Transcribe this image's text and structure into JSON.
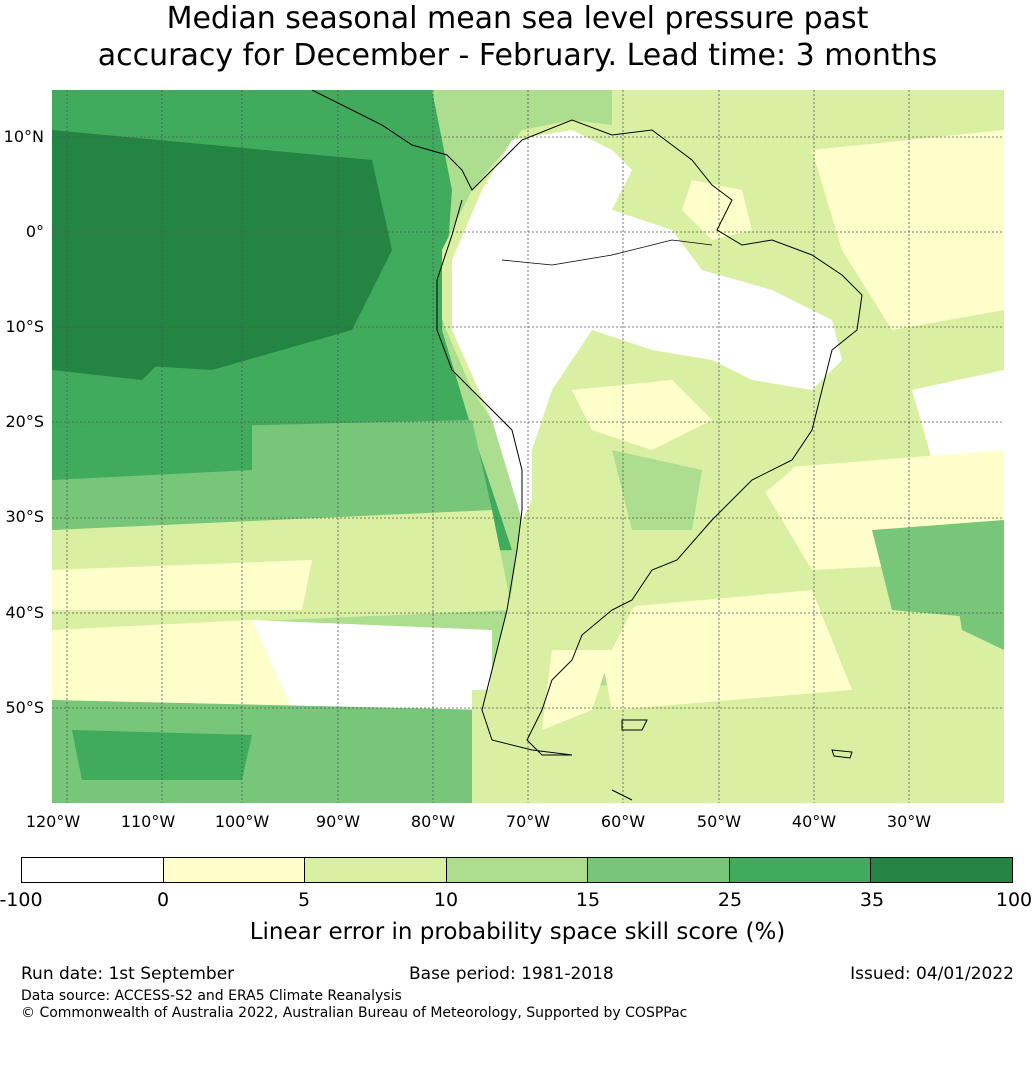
{
  "title": {
    "line1": "Median seasonal mean sea level pressure past",
    "line2": "accuracy for December - February. Lead time: 3 months"
  },
  "map": {
    "lat_labels": [
      "10°N",
      "0°",
      "10°S",
      "20°S",
      "30°S",
      "40°S",
      "50°S"
    ],
    "lon_labels": [
      "120°W",
      "110°W",
      "100°W",
      "90°W",
      "80°W",
      "70°W",
      "60°W",
      "50°W",
      "40°W",
      "30°W"
    ],
    "colors": {
      "land_outline": "#000000",
      "gridline": "#555555"
    }
  },
  "colorbar": {
    "ticks": [
      "-100",
      "0",
      "5",
      "10",
      "15",
      "25",
      "35",
      "100"
    ],
    "colors": [
      "#ffffff",
      "#ffffcc",
      "#d9f0a3",
      "#addd8e",
      "#78c679",
      "#41ab5d",
      "#238443"
    ],
    "label": "Linear error in probability space skill score (%)"
  },
  "footer": {
    "run_date": "Run date: 1st September",
    "base_period": "Base period: 1981-2018",
    "issued": "Issued: 04/01/2022",
    "data_source": "Data source: ACCESS-S2 and ERA5 Climate Reanalysis",
    "copyright": "© Commonwealth of Australia 2022, Australian Bureau of Meteorology, Supported by COSPPac"
  }
}
